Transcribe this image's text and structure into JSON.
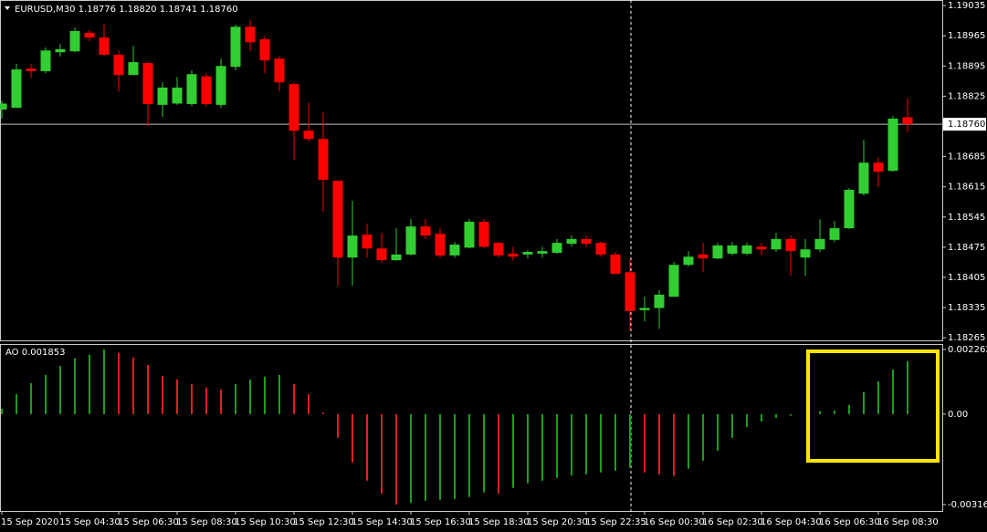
{
  "chart_data": [
    {
      "type": "candlestick",
      "title": "EURUSD,M30  1.18776 1.18820 1.18741 1.18760",
      "categories": [
        "15 Sep 2020",
        null,
        null,
        null,
        "15 Sep 04:30",
        null,
        null,
        null,
        "15 Sep 06:30",
        null,
        null,
        null,
        "15 Sep 08:30",
        null,
        null,
        null,
        "15 Sep 10:30",
        null,
        null,
        null,
        "15 Sep 12:30",
        null,
        null,
        null,
        "15 Sep 14:30",
        null,
        null,
        null,
        "15 Sep 16:30",
        null,
        null,
        null,
        "15 Sep 18:30",
        null,
        null,
        null,
        "15 Sep 20:30",
        null,
        null,
        null,
        "15 Sep 22:35",
        null,
        null,
        null,
        "16 Sep 00:30",
        null,
        null,
        null,
        "16 Sep 02:30",
        null,
        null,
        null,
        "16 Sep 04:30",
        null,
        null,
        null,
        "16 Sep 06:30",
        null,
        null,
        null,
        "16 Sep 08:30",
        null,
        null
      ],
      "open": [
        1.18794,
        1.18798,
        1.18889,
        1.18883,
        1.18927,
        1.18929,
        1.18972,
        1.18961,
        1.18921,
        1.18874,
        1.18902,
        1.18805,
        1.18808,
        1.18807,
        1.18871,
        1.18805,
        1.18893,
        1.18986,
        1.18957,
        1.18912,
        1.18853,
        1.18745,
        1.18726,
        1.18629,
        1.18451,
        1.18504,
        1.18472,
        1.18445,
        1.18458,
        1.18523,
        1.18506,
        1.18456,
        1.18474,
        1.18534,
        1.18485,
        1.1846,
        1.18458,
        1.1846,
        1.18462,
        1.18483,
        1.18494,
        1.18485,
        1.18458,
        1.18417,
        1.18329,
        1.18334,
        1.1836,
        1.18434,
        1.18458,
        1.18449,
        1.1846,
        1.1846,
        1.18476,
        1.1847,
        1.18494,
        1.18451,
        1.1847,
        1.18492,
        1.18519,
        1.18599,
        1.18671,
        1.18652,
        1.18776
      ],
      "high": [
        1.18815,
        1.189,
        1.189,
        1.18938,
        1.18946,
        1.18984,
        1.18978,
        1.18991,
        1.18931,
        1.18942,
        1.18904,
        1.18857,
        1.18869,
        1.18885,
        1.18878,
        1.18912,
        1.18991,
        1.19001,
        1.18963,
        1.18917,
        1.18857,
        1.1881,
        1.18788,
        1.18629,
        1.18582,
        1.1853,
        1.18508,
        1.18519,
        1.1854,
        1.1854,
        1.18519,
        1.18487,
        1.1854,
        1.1854,
        1.18487,
        1.18476,
        1.18468,
        1.18476,
        1.18494,
        1.18502,
        1.18502,
        1.18488,
        1.18464,
        1.18447,
        1.1836,
        1.18375,
        1.18441,
        1.18466,
        1.18485,
        1.18485,
        1.18487,
        1.18485,
        1.18485,
        1.18508,
        1.18502,
        1.18494,
        1.1854,
        1.18536,
        1.18612,
        1.18724,
        1.18684,
        1.18779,
        1.1882
      ],
      "low": [
        1.18773,
        1.18798,
        1.18867,
        1.18878,
        1.18917,
        1.18927,
        1.18953,
        1.18917,
        1.18836,
        1.18874,
        1.18756,
        1.18777,
        1.18805,
        1.18802,
        1.18802,
        1.18798,
        1.18885,
        1.18929,
        1.18878,
        1.18836,
        1.18678,
        1.1872,
        1.18557,
        1.18386,
        1.18386,
        1.18451,
        1.18439,
        1.18443,
        1.18456,
        1.18494,
        1.18451,
        1.18451,
        1.18472,
        1.18472,
        1.18451,
        1.18445,
        1.18449,
        1.18451,
        1.1846,
        1.18476,
        1.18476,
        1.18453,
        1.18413,
        1.18282,
        1.18303,
        1.18286,
        1.1836,
        1.1843,
        1.18417,
        1.18447,
        1.18456,
        1.18456,
        1.18456,
        1.18464,
        1.18409,
        1.18409,
        1.18464,
        1.18487,
        1.18517,
        1.18595,
        1.18614,
        1.1865,
        1.18741
      ],
      "close": [
        1.18808,
        1.18887,
        1.18883,
        1.18931,
        1.18934,
        1.18976,
        1.18961,
        1.18921,
        1.18874,
        1.18904,
        1.18807,
        1.18845,
        1.18845,
        1.18876,
        1.18807,
        1.18895,
        1.18986,
        1.1895,
        1.18908,
        1.18857,
        1.18745,
        1.18726,
        1.18631,
        1.18451,
        1.18502,
        1.18472,
        1.18445,
        1.18458,
        1.18523,
        1.18502,
        1.18456,
        1.18481,
        1.18534,
        1.18476,
        1.18456,
        1.18453,
        1.18464,
        1.18466,
        1.18485,
        1.18494,
        1.18483,
        1.18458,
        1.18413,
        1.18327,
        1.18334,
        1.18365,
        1.18434,
        1.18453,
        1.18449,
        1.18479,
        1.18479,
        1.18479,
        1.1847,
        1.18494,
        1.18466,
        1.1847,
        1.18494,
        1.18519,
        1.18608,
        1.18671,
        1.1865,
        1.18773,
        1.1876
      ],
      "up_color": "#32cd32",
      "down_color": "#ff0000",
      "ylim": [
        1.18259,
        1.19048
      ],
      "yticks": [
        1.19035,
        1.18965,
        1.18895,
        1.18825,
        1.18685,
        1.18615,
        1.18545,
        1.18475,
        1.18405,
        1.18335,
        1.18265
      ],
      "price_line": {
        "value": 1.1876,
        "label": "1.18760"
      }
    },
    {
      "type": "bar",
      "title": "AO 0.001853",
      "values": [
        0.00019,
        0.0007,
        0.00108,
        0.00137,
        0.00169,
        0.00195,
        0.00208,
        0.002262,
        0.00214,
        0.00198,
        0.00172,
        0.00134,
        0.00121,
        0.00105,
        0.00093,
        0.00086,
        0.00105,
        0.00121,
        0.00131,
        0.00137,
        0.00105,
        0.0007,
        6e-05,
        -0.00083,
        -0.00169,
        -0.00233,
        -0.00278,
        -0.003164,
        -0.0031,
        -0.00303,
        -0.003,
        -0.00297,
        -0.0029,
        -0.00274,
        -0.00278,
        -0.00258,
        -0.00242,
        -0.00233,
        -0.00223,
        -0.00214,
        -0.00211,
        -0.00204,
        -0.00198,
        -0.00188,
        -0.00204,
        -0.00211,
        -0.00217,
        -0.00191,
        -0.00163,
        -0.00128,
        -0.00083,
        -0.00045,
        -0.00026,
        -0.00013,
        -6e-05,
        -1e-05,
        0.0001,
        0.00013,
        0.00032,
        0.00077,
        0.00115,
        0.00156,
        0.001853
      ],
      "up_color": "#1f9e1f",
      "down_color": "#e0201e",
      "ylim": [
        -0.00339,
        0.00242
      ],
      "yticks": [
        0.002262,
        {
          "value": 0,
          "label": "0.00"
        },
        -0.003164
      ]
    }
  ]
}
